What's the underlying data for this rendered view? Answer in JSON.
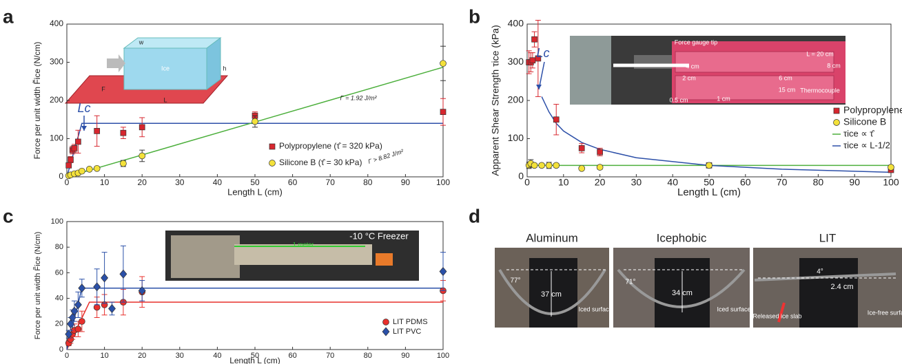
{
  "chart_data": [
    {
      "type": "scatter",
      "panel_label": "a",
      "xlabel": "Length  L (cm)",
      "ylabel": "Force per unit width F̃ice (N/cm)",
      "xlim": [
        0,
        100
      ],
      "xticks": [
        0,
        10,
        20,
        30,
        40,
        50,
        60,
        70,
        80,
        90,
        100
      ],
      "ylim": [
        0,
        400
      ],
      "yticks": [
        0,
        100,
        200,
        300,
        400
      ],
      "series": [
        {
          "name": "Polypropylene (τ̂ = 320 kPa)",
          "color": "#d7262e",
          "marker": "square",
          "x": [
            0.5,
            1,
            1.5,
            2,
            3,
            8,
            15,
            20,
            50,
            100
          ],
          "values": [
            30,
            45,
            70,
            75,
            92,
            120,
            115,
            130,
            160,
            170
          ],
          "errors": [
            5,
            8,
            10,
            10,
            30,
            40,
            15,
            25,
            10,
            35
          ]
        },
        {
          "name": "Silicone B (τ̂ = 30 kPa)",
          "color": "#f3e13a",
          "marker": "circle",
          "x": [
            0.5,
            1,
            2,
            3,
            4,
            6,
            8,
            15,
            20,
            50,
            100
          ],
          "values": [
            3,
            5,
            8,
            10,
            15,
            20,
            22,
            35,
            55,
            145,
            297
          ],
          "errors": [
            2,
            2,
            3,
            3,
            3,
            4,
            4,
            8,
            15,
            15,
            45
          ]
        }
      ],
      "fits": [
        {
          "color": "#2c4fa8",
          "x": [
            0,
            4,
            100
          ],
          "values": [
            0,
            140,
            140
          ]
        },
        {
          "color": "#4caf3c",
          "x": [
            0,
            100
          ],
          "values": [
            0,
            287
          ]
        }
      ],
      "annotations": [
        "Γ > 8.82 J/m²",
        "Γ = 1.92 J/m²",
        "Lc"
      ],
      "inset_labels": [
        "w",
        "h",
        "L",
        "F",
        "Ice"
      ]
    },
    {
      "type": "scatter",
      "panel_label": "b",
      "xlabel": "Length  L (cm)",
      "ylabel": "Apparent Shear Strength τice (kPa)",
      "xlim": [
        0,
        100
      ],
      "xticks": [
        0,
        10,
        20,
        30,
        40,
        50,
        60,
        70,
        80,
        90,
        100
      ],
      "ylim": [
        0,
        400
      ],
      "yticks": [
        0,
        100,
        200,
        300,
        400
      ],
      "series": [
        {
          "name": "Polypropylene",
          "color": "#d7262e",
          "marker": "square",
          "x": [
            0.5,
            1,
            1.5,
            2,
            3,
            8,
            15,
            20,
            50,
            100
          ],
          "values": [
            300,
            300,
            305,
            360,
            310,
            150,
            75,
            65,
            30,
            18
          ],
          "errors": [
            30,
            25,
            20,
            20,
            100,
            40,
            12,
            10,
            4,
            5
          ]
        },
        {
          "name": "Silicone B",
          "color": "#f3e13a",
          "marker": "circle",
          "x": [
            0.5,
            1,
            2,
            4,
            6,
            8,
            15,
            20,
            50,
            100
          ],
          "values": [
            30,
            35,
            30,
            30,
            30,
            30,
            22,
            25,
            30,
            25
          ],
          "errors": [
            8,
            10,
            5,
            5,
            8,
            5,
            4,
            5,
            4,
            5
          ]
        }
      ],
      "fits": [
        {
          "name": "τice ∝ τ̂",
          "color": "#4caf3c",
          "x": [
            0,
            100
          ],
          "values": [
            30,
            30
          ]
        },
        {
          "name": "τice ∝ L-1/2",
          "color": "#2c4fa8",
          "x": [
            4,
            6,
            8,
            10,
            15,
            20,
            30,
            50,
            70,
            100
          ],
          "values": [
            210,
            170,
            140,
            120,
            90,
            72,
            50,
            30,
            20,
            12
          ]
        }
      ],
      "annotations": [
        "Lc"
      ],
      "inset_labels": [
        "Force gauge tip",
        "L = 20 cm",
        "8 cm",
        "4 cm",
        "2 cm",
        "6 cm",
        "15 cm",
        "0.5 cm",
        "1 cm",
        "Thermocouple"
      ]
    },
    {
      "type": "scatter",
      "panel_label": "c",
      "xlabel": "Length L (cm)",
      "ylabel": "Force per unit width F̃ice (N/cm)",
      "xlim": [
        0,
        100
      ],
      "xticks": [
        0,
        10,
        20,
        30,
        40,
        50,
        60,
        70,
        80,
        90,
        100
      ],
      "ylim": [
        0,
        100
      ],
      "yticks": [
        0,
        20,
        40,
        60,
        80,
        100
      ],
      "series": [
        {
          "name": "LIT PDMS",
          "color": "#e8302c",
          "marker": "circle",
          "x": [
            0.5,
            1,
            1.5,
            2,
            3,
            4,
            8,
            10,
            15,
            20,
            100
          ],
          "values": [
            5,
            8,
            12,
            15,
            16,
            22,
            33,
            35,
            37,
            45,
            46
          ],
          "errors": [
            2,
            3,
            4,
            5,
            6,
            8,
            8,
            8,
            10,
            12,
            8
          ]
        },
        {
          "name": "LIT PVC",
          "color": "#2a50a8",
          "marker": "diamond",
          "x": [
            0.5,
            1,
            1.5,
            2,
            3,
            4,
            8,
            10,
            12,
            15,
            20,
            100
          ],
          "values": [
            12,
            20,
            25,
            30,
            35,
            48,
            49,
            56,
            32,
            59,
            46,
            61
          ],
          "errors": [
            3,
            5,
            6,
            8,
            10,
            7,
            14,
            20,
            5,
            22,
            8,
            15
          ]
        }
      ],
      "fits": [
        {
          "color": "#e8302c",
          "x": [
            0,
            6,
            100
          ],
          "values": [
            0,
            37,
            37
          ]
        },
        {
          "color": "#2a50a8",
          "x": [
            0,
            4,
            100
          ],
          "values": [
            0,
            48,
            48
          ]
        }
      ],
      "annotations": [],
      "inset_labels": [
        "-10 °C Freezer",
        "1 meter"
      ]
    }
  ],
  "panel_d": {
    "panel_label": "d",
    "titles": [
      "Aluminum",
      "Icephobic",
      "LIT"
    ],
    "labels": [
      "77°",
      "37 cm",
      "Iced surface",
      "71°",
      "34 cm",
      "Iced surface",
      "4°",
      "2.4 cm",
      "Released ice slab",
      "Ice-free surface"
    ]
  }
}
